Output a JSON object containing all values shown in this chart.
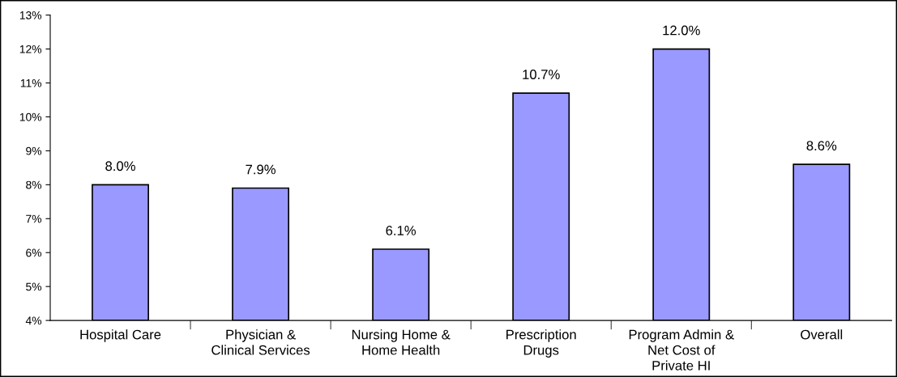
{
  "chart_data": {
    "type": "bar",
    "categories": [
      "Hospital Care",
      "Physician &\nClinical Services",
      "Nursing Home &\nHome Health",
      "Prescription\nDrugs",
      "Program Admin &\nNet Cost of\nPrivate HI",
      "Overall"
    ],
    "values": [
      8.0,
      7.9,
      6.1,
      10.7,
      12.0,
      8.6
    ],
    "value_labels": [
      "8.0%",
      "7.9%",
      "6.1%",
      "10.7%",
      "12.0%",
      "8.6%"
    ],
    "color": "#9999ff",
    "ylim": [
      4,
      13
    ],
    "yticks": [
      {
        "value": 4,
        "label": "4%"
      },
      {
        "value": 5,
        "label": "5%"
      },
      {
        "value": 6,
        "label": "6%"
      },
      {
        "value": 7,
        "label": "7%"
      },
      {
        "value": 8,
        "label": "8%"
      },
      {
        "value": 9,
        "label": "9%"
      },
      {
        "value": 10,
        "label": "10%"
      },
      {
        "value": 11,
        "label": "11%"
      },
      {
        "value": 12,
        "label": "12%"
      },
      {
        "value": 13,
        "label": "13%"
      }
    ],
    "grid": false
  }
}
